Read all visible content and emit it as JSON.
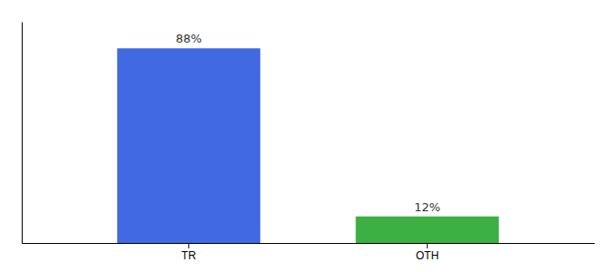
{
  "chart_data": {
    "type": "bar",
    "categories": [
      "TR",
      "OTH"
    ],
    "values": [
      88,
      12
    ],
    "value_labels": [
      "88%",
      "12%"
    ],
    "colors": [
      "#4169E1",
      "#3CB043"
    ],
    "ylim": [
      0,
      100
    ],
    "data_labels": true,
    "tick_labels": "x"
  }
}
